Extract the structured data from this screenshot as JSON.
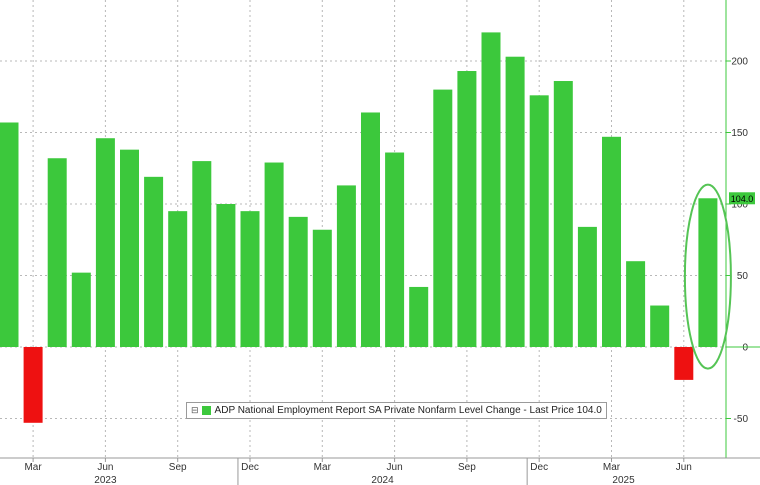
{
  "chart_data": {
    "type": "bar",
    "title": "",
    "xlabel": "",
    "ylabel": "",
    "ylim": [
      -75,
      240
    ],
    "yticks": [
      -50,
      0,
      50,
      100,
      150,
      200
    ],
    "categories": [
      "Feb 2023",
      "Mar 2023",
      "Apr 2023",
      "May 2023",
      "Jun 2023",
      "Jul 2023",
      "Aug 2023",
      "Sep 2023",
      "Oct 2023",
      "Nov 2023",
      "Dec 2023",
      "Jan 2024",
      "Feb 2024",
      "Mar 2024",
      "Apr 2024",
      "May 2024",
      "Jun 2024",
      "Jul 2024",
      "Aug 2024",
      "Sep 2024",
      "Oct 2024",
      "Nov 2024",
      "Dec 2024",
      "Jan 2025",
      "Feb 2025",
      "Mar 2025",
      "Apr 2025",
      "May 2025",
      "Jun 2025",
      "Jul 2025"
    ],
    "values": [
      157,
      -53,
      132,
      52,
      146,
      138,
      119,
      95,
      130,
      100,
      95,
      129,
      91,
      82,
      113,
      164,
      136,
      42,
      180,
      193,
      220,
      203,
      176,
      186,
      84,
      147,
      60,
      29,
      -23,
      104
    ],
    "positive_color": "#3cc83c",
    "negative_color": "#ee1111",
    "month_labels": [
      {
        "index": 1,
        "label": "Mar"
      },
      {
        "index": 4,
        "label": "Jun"
      },
      {
        "index": 7,
        "label": "Sep"
      },
      {
        "index": 10,
        "label": "Dec"
      },
      {
        "index": 13,
        "label": "Mar"
      },
      {
        "index": 16,
        "label": "Jun"
      },
      {
        "index": 19,
        "label": "Sep"
      },
      {
        "index": 22,
        "label": "Dec"
      },
      {
        "index": 25,
        "label": "Mar"
      },
      {
        "index": 28,
        "label": "Jun"
      }
    ],
    "year_labels": [
      {
        "label": "2023",
        "center_index": 4
      },
      {
        "label": "2024",
        "center_index": 15.5
      },
      {
        "label": "2025",
        "center_index": 25.5
      }
    ],
    "year_separators_after_index": [
      9.5,
      21.5
    ],
    "last_price_tag": "104.0",
    "legend": {
      "toggle": "⊟",
      "text": "ADP National Employment Report SA Private Nonfarm Level Change - Last Price 104.0"
    },
    "annotation": "green ellipse highlighting latest bar"
  }
}
